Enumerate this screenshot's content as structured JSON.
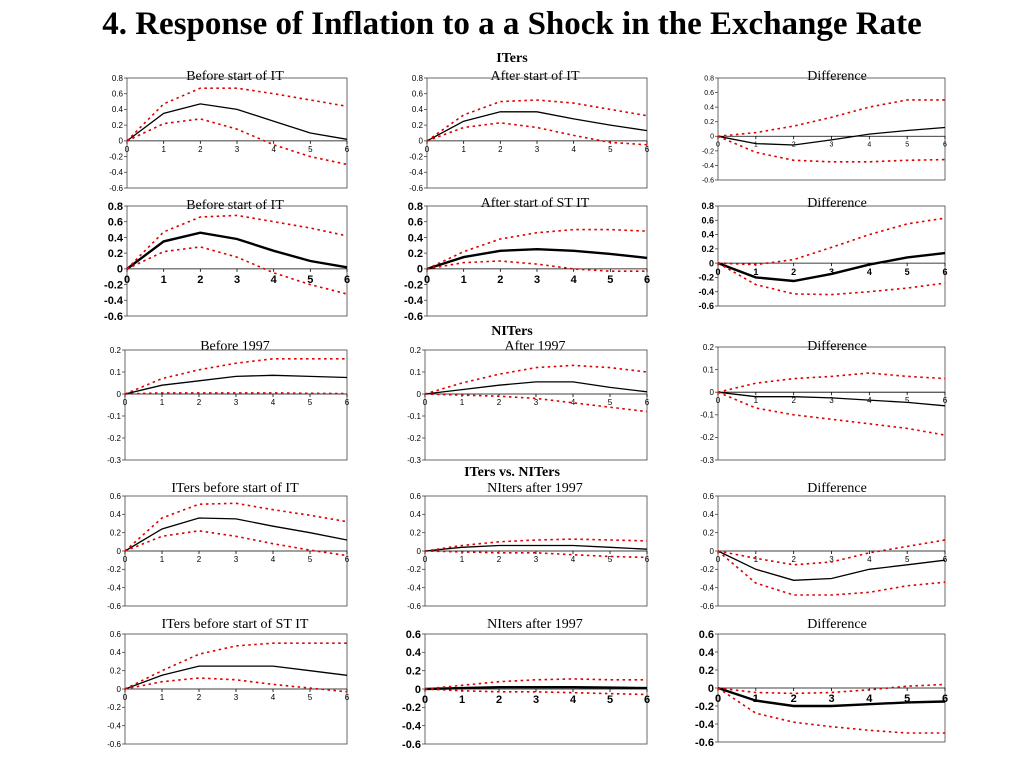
{
  "title": "4. Response of Inflation to a a Shock in the Exchange Rate",
  "sections": [
    {
      "label": "ITers"
    },
    {
      "label": "NITers"
    },
    {
      "label": "ITers vs. NITers"
    }
  ],
  "colors": {
    "point": "#000000",
    "band": "#dd0000",
    "frame": "#444444"
  },
  "chart_data": [
    {
      "type": "line",
      "title": "Before start of IT",
      "x": [
        0,
        1,
        2,
        3,
        4,
        5,
        6
      ],
      "ylim": [
        -0.6,
        0.8
      ],
      "yticks": [
        "0.8",
        "0.6",
        "0.4",
        "0.2",
        "0",
        "-0.2",
        "-0.4",
        "-0.6"
      ],
      "series": [
        {
          "values": [
            0,
            0.35,
            0.47,
            0.4,
            0.25,
            0.1,
            0.02
          ]
        },
        {
          "values": [
            0,
            0.47,
            0.67,
            0.67,
            0.6,
            0.52,
            0.44
          ]
        },
        {
          "values": [
            0,
            0.22,
            0.28,
            0.15,
            -0.05,
            -0.2,
            -0.3
          ]
        }
      ]
    },
    {
      "type": "line",
      "title": "After start of IT",
      "x": [
        0,
        1,
        2,
        3,
        4,
        5,
        6
      ],
      "ylim": [
        -0.6,
        0.8
      ],
      "yticks": [
        "0.8",
        "0.6",
        "0.4",
        "0.2",
        "0",
        "-0.2",
        "-0.4",
        "-0.6"
      ],
      "series": [
        {
          "values": [
            0,
            0.25,
            0.37,
            0.37,
            0.28,
            0.2,
            0.13
          ]
        },
        {
          "values": [
            0,
            0.33,
            0.5,
            0.52,
            0.48,
            0.4,
            0.32
          ]
        },
        {
          "values": [
            0,
            0.17,
            0.23,
            0.17,
            0.07,
            -0.02,
            -0.05
          ]
        }
      ]
    },
    {
      "type": "line",
      "title": "Difference",
      "x": [
        0,
        1,
        2,
        3,
        4,
        5,
        6
      ],
      "ylim": [
        -0.6,
        0.8
      ],
      "yticks": [
        "0.8",
        "0.6",
        "0.4",
        "0.2",
        "0",
        "-0.2",
        "-0.4",
        "-0.6"
      ],
      "series": [
        {
          "values": [
            0,
            -0.1,
            -0.12,
            -0.05,
            0.03,
            0.08,
            0.12
          ]
        },
        {
          "values": [
            0,
            0.05,
            0.14,
            0.26,
            0.4,
            0.5,
            0.5
          ]
        },
        {
          "values": [
            0,
            -0.22,
            -0.33,
            -0.35,
            -0.35,
            -0.33,
            -0.32
          ]
        }
      ]
    },
    {
      "type": "line",
      "title": "Before start of IT",
      "x": [
        0,
        1,
        2,
        3,
        4,
        5,
        6
      ],
      "ylim": [
        -0.6,
        0.8
      ],
      "yticks": [
        "0.8",
        "0.6",
        "0.4",
        "0.2",
        "0",
        "-0.2",
        "-0.4",
        "-0.6"
      ],
      "series": [
        {
          "values": [
            0,
            0.35,
            0.46,
            0.38,
            0.23,
            0.1,
            0.02
          ]
        },
        {
          "values": [
            0,
            0.47,
            0.66,
            0.68,
            0.6,
            0.52,
            0.42
          ]
        },
        {
          "values": [
            0,
            0.22,
            0.28,
            0.15,
            -0.05,
            -0.2,
            -0.32
          ]
        }
      ]
    },
    {
      "type": "line",
      "title": "After start of ST IT",
      "x": [
        0,
        1,
        2,
        3,
        4,
        5,
        6
      ],
      "ylim": [
        -0.6,
        0.8
      ],
      "yticks": [
        "0.8",
        "0.6",
        "0.4",
        "0.2",
        "0",
        "-0.2",
        "-0.4",
        "-0.6"
      ],
      "series": [
        {
          "values": [
            0,
            0.15,
            0.23,
            0.25,
            0.23,
            0.19,
            0.14
          ]
        },
        {
          "values": [
            0,
            0.22,
            0.38,
            0.46,
            0.5,
            0.5,
            0.48
          ]
        },
        {
          "values": [
            0,
            0.08,
            0.1,
            0.06,
            0,
            -0.03,
            -0.03
          ]
        }
      ]
    },
    {
      "type": "line",
      "title": "Difference",
      "x": [
        0,
        1,
        2,
        3,
        4,
        5,
        6
      ],
      "ylim": [
        -0.6,
        0.8
      ],
      "yticks": [
        "0.8",
        "0.6",
        "0.4",
        "0.2",
        "0",
        "-0.2",
        "-0.4",
        "-0.6"
      ],
      "series": [
        {
          "values": [
            0,
            -0.2,
            -0.25,
            -0.15,
            -0.02,
            0.08,
            0.14
          ]
        },
        {
          "values": [
            0,
            -0.02,
            0.05,
            0.22,
            0.4,
            0.55,
            0.63
          ]
        },
        {
          "values": [
            0,
            -0.3,
            -0.43,
            -0.44,
            -0.4,
            -0.35,
            -0.28
          ]
        }
      ]
    },
    {
      "type": "line",
      "title": "Before 1997",
      "x": [
        0,
        1,
        2,
        3,
        4,
        5,
        6
      ],
      "ylim": [
        -0.3,
        0.2
      ],
      "yticks": [
        "0.2",
        "0.1",
        "0",
        "-0.1",
        "-0.2",
        "-0.3"
      ],
      "series": [
        {
          "values": [
            0,
            0.04,
            0.06,
            0.08,
            0.085,
            0.08,
            0.075
          ]
        },
        {
          "values": [
            0,
            0.07,
            0.11,
            0.14,
            0.16,
            0.16,
            0.16
          ]
        },
        {
          "values": [
            0,
            0.005,
            0.005,
            0.005,
            0.005,
            0.003,
            0.002
          ]
        }
      ]
    },
    {
      "type": "line",
      "title": "After 1997",
      "x": [
        0,
        1,
        2,
        3,
        4,
        5,
        6
      ],
      "ylim": [
        -0.3,
        0.2
      ],
      "yticks": [
        "0.2",
        "0.1",
        "0",
        "-0.1",
        "-0.2",
        "-0.3"
      ],
      "series": [
        {
          "values": [
            0,
            0.02,
            0.04,
            0.055,
            0.055,
            0.03,
            0.01
          ]
        },
        {
          "values": [
            0,
            0.05,
            0.09,
            0.12,
            0.13,
            0.12,
            0.1
          ]
        },
        {
          "values": [
            0,
            -0.005,
            -0.01,
            -0.02,
            -0.04,
            -0.06,
            -0.08
          ]
        }
      ]
    },
    {
      "type": "line",
      "title": "Difference",
      "x": [
        0,
        1,
        2,
        3,
        4,
        5,
        6
      ],
      "ylim": [
        -0.3,
        0.2
      ],
      "yticks": [
        "0.2",
        "0.1",
        "0",
        "-0.1",
        "-0.2",
        "-0.3"
      ],
      "series": [
        {
          "values": [
            0,
            -0.02,
            -0.02,
            -0.025,
            -0.035,
            -0.045,
            -0.06
          ]
        },
        {
          "values": [
            0,
            0.04,
            0.06,
            0.07,
            0.085,
            0.07,
            0.06
          ]
        },
        {
          "values": [
            0,
            -0.07,
            -0.1,
            -0.12,
            -0.14,
            -0.16,
            -0.19
          ]
        }
      ]
    },
    {
      "type": "line",
      "title": "ITers before start of IT",
      "x": [
        0,
        1,
        2,
        3,
        4,
        5,
        6
      ],
      "ylim": [
        -0.6,
        0.6
      ],
      "yticks": [
        "0.6",
        "0.4",
        "0.2",
        "0",
        "-0.2",
        "-0.4",
        "-0.6"
      ],
      "series": [
        {
          "values": [
            0,
            0.24,
            0.36,
            0.35,
            0.27,
            0.2,
            0.12
          ]
        },
        {
          "values": [
            0,
            0.36,
            0.51,
            0.52,
            0.45,
            0.39,
            0.32
          ]
        },
        {
          "values": [
            0,
            0.16,
            0.22,
            0.16,
            0.08,
            0.01,
            -0.05
          ]
        }
      ]
    },
    {
      "type": "line",
      "title": "NIters after 1997",
      "x": [
        0,
        1,
        2,
        3,
        4,
        5,
        6
      ],
      "ylim": [
        -0.6,
        0.6
      ],
      "yticks": [
        "0.6",
        "0.4",
        "0.2",
        "0",
        "-0.2",
        "-0.4",
        "-0.6"
      ],
      "series": [
        {
          "values": [
            0,
            0.04,
            0.06,
            0.06,
            0.06,
            0.04,
            0.02
          ]
        },
        {
          "values": [
            0,
            0.06,
            0.1,
            0.12,
            0.13,
            0.12,
            0.11
          ]
        },
        {
          "values": [
            0,
            -0.01,
            -0.02,
            -0.02,
            -0.04,
            -0.06,
            -0.07
          ]
        }
      ]
    },
    {
      "type": "line",
      "title": "Difference",
      "x": [
        0,
        1,
        2,
        3,
        4,
        5,
        6
      ],
      "ylim": [
        -0.6,
        0.6
      ],
      "yticks": [
        "0.6",
        "0.4",
        "0.2",
        "0",
        "-0.2",
        "-0.4",
        "-0.6"
      ],
      "series": [
        {
          "values": [
            0,
            -0.2,
            -0.32,
            -0.3,
            -0.2,
            -0.15,
            -0.1
          ]
        },
        {
          "values": [
            0,
            -0.08,
            -0.15,
            -0.12,
            -0.02,
            0.05,
            0.12
          ]
        },
        {
          "values": [
            0,
            -0.35,
            -0.48,
            -0.48,
            -0.45,
            -0.38,
            -0.34
          ]
        }
      ]
    },
    {
      "type": "line",
      "title": "ITers before start of ST IT",
      "x": [
        0,
        1,
        2,
        3,
        4,
        5,
        6
      ],
      "ylim": [
        -0.6,
        0.6
      ],
      "yticks": [
        "0.6",
        "0.4",
        "0.2",
        "0",
        "-0.2",
        "-0.4",
        "-0.6"
      ],
      "series": [
        {
          "values": [
            0,
            0.15,
            0.25,
            0.25,
            0.25,
            0.2,
            0.15
          ]
        },
        {
          "values": [
            0,
            0.2,
            0.38,
            0.47,
            0.5,
            0.5,
            0.5
          ]
        },
        {
          "values": [
            0,
            0.08,
            0.12,
            0.1,
            0.05,
            0.01,
            -0.03
          ]
        }
      ]
    },
    {
      "type": "line",
      "title": "NIters after 1997",
      "x": [
        0,
        1,
        2,
        3,
        4,
        5,
        6
      ],
      "ylim": [
        -0.6,
        0.6
      ],
      "yticks": [
        "0.6",
        "0.4",
        "0.2",
        "0",
        "-0.2",
        "-0.4",
        "-0.6"
      ],
      "series": [
        {
          "values": [
            0,
            0.01,
            0.02,
            0.02,
            0.02,
            0.015,
            0.01
          ]
        },
        {
          "values": [
            0,
            0.04,
            0.08,
            0.1,
            0.11,
            0.1,
            0.1
          ]
        },
        {
          "values": [
            0,
            -0.02,
            -0.03,
            -0.03,
            -0.04,
            -0.05,
            -0.06
          ]
        }
      ]
    },
    {
      "type": "line",
      "title": "Difference",
      "x": [
        0,
        1,
        2,
        3,
        4,
        5,
        6
      ],
      "ylim": [
        -0.6,
        0.6
      ],
      "yticks": [
        "0.6",
        "0.4",
        "0.2",
        "0",
        "-0.2",
        "-0.4",
        "-0.6"
      ],
      "series": [
        {
          "values": [
            0,
            -0.14,
            -0.2,
            -0.2,
            -0.18,
            -0.16,
            -0.15
          ]
        },
        {
          "values": [
            0,
            -0.05,
            -0.06,
            -0.05,
            -0.02,
            0.02,
            0.04
          ]
        },
        {
          "values": [
            0,
            -0.28,
            -0.38,
            -0.43,
            -0.47,
            -0.5,
            -0.5
          ]
        }
      ]
    }
  ]
}
